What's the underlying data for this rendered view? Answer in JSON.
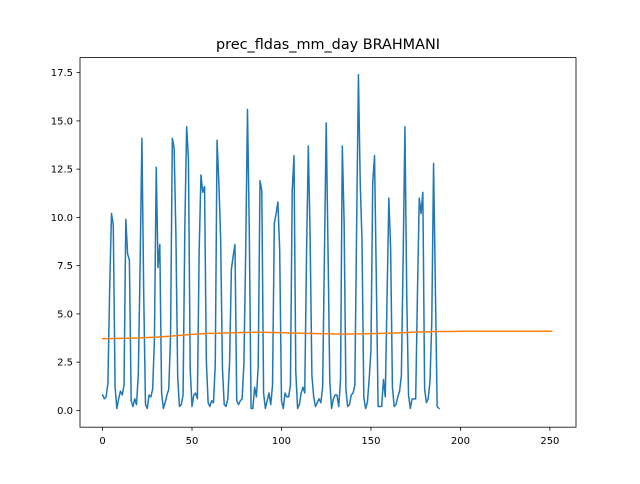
{
  "chart_data": {
    "type": "line",
    "title": "prec_fldas_mm_day BRAHMANI",
    "xlabel": "",
    "ylabel": "",
    "xlim": [
      -12.6,
      264.6
    ],
    "ylim": [
      -0.87,
      18.28
    ],
    "xticks": [
      0,
      50,
      100,
      150,
      200,
      250
    ],
    "yticks": [
      0.0,
      2.5,
      5.0,
      7.5,
      10.0,
      12.5,
      15.0,
      17.5
    ],
    "xtick_labels": [
      "0",
      "50",
      "100",
      "150",
      "200",
      "250"
    ],
    "ytick_labels": [
      "0.0",
      "2.5",
      "5.0",
      "7.5",
      "10.0",
      "12.5",
      "15.0",
      "17.5"
    ],
    "grid": false,
    "legend": "none",
    "series": [
      {
        "color": "#1f77b4",
        "values": [
          0.8,
          0.6,
          0.7,
          1.4,
          6.4,
          10.2,
          9.6,
          1.2,
          0.1,
          0.6,
          1.0,
          0.8,
          1.3,
          9.9,
          8.1,
          7.8,
          0.5,
          0.2,
          0.6,
          0.3,
          1.9,
          7.6,
          14.1,
          6.1,
          0.3,
          0.1,
          0.8,
          0.7,
          1.1,
          3.7,
          12.6,
          7.4,
          8.6,
          0.9,
          0.1,
          0.4,
          0.8,
          1.1,
          3.8,
          14.1,
          13.6,
          9.1,
          1.7,
          0.2,
          0.3,
          0.8,
          9.5,
          14.7,
          13.0,
          2.1,
          0.2,
          0.8,
          0.9,
          0.6,
          8.3,
          12.2,
          11.3,
          11.6,
          2.6,
          0.4,
          0.2,
          0.5,
          0.4,
          2.4,
          14.0,
          11.8,
          8.9,
          2.2,
          0.3,
          0.2,
          0.6,
          2.5,
          7.3,
          8.0,
          8.6,
          0.5,
          0.3,
          0.5,
          0.6,
          2.4,
          8.2,
          15.6,
          9.4,
          0.1,
          0.1,
          1.2,
          0.7,
          2.3,
          11.9,
          11.4,
          0.9,
          0.1,
          0.5,
          0.9,
          0.3,
          1.3,
          9.7,
          10.2,
          10.8,
          8.3,
          0.5,
          0.1,
          0.9,
          0.7,
          0.7,
          1.3,
          11.4,
          13.2,
          2.0,
          0.1,
          0.3,
          0.9,
          1.2,
          0.9,
          8.1,
          13.7,
          9.0,
          1.8,
          0.7,
          0.2,
          0.4,
          0.6,
          0.4,
          1.2,
          8.0,
          14.9,
          8.4,
          1.5,
          0.1,
          0.6,
          0.8,
          0.8,
          0.2,
          1.6,
          13.7,
          9.8,
          1.1,
          0.2,
          0.3,
          0.8,
          0.9,
          1.3,
          9.5,
          17.4,
          11.8,
          8.8,
          0.7,
          0.1,
          0.4,
          1.6,
          3.1,
          11.8,
          13.2,
          6.8,
          0.2,
          0.2,
          0.2,
          1.6,
          0.7,
          5.8,
          11.0,
          8.4,
          1.2,
          0.2,
          0.3,
          0.7,
          1.0,
          1.8,
          7.9,
          14.7,
          6.0,
          0.8,
          0.1,
          0.6,
          0.6,
          0.6,
          6.1,
          11.0,
          10.2,
          11.3,
          1.1,
          0.4,
          0.6,
          1.5,
          4.6,
          12.8,
          6.4,
          0.2,
          0.1
        ],
        "x_step": 1
      },
      {
        "color": "#ff7f0e",
        "values": [
          3.72,
          3.72,
          3.73,
          3.74,
          3.75,
          3.78,
          3.8,
          3.83,
          3.86,
          3.9,
          3.94,
          3.97,
          3.99,
          4.0,
          4.02,
          4.03,
          4.04,
          4.05,
          4.05,
          4.04,
          4.03,
          4.01,
          4.0,
          3.99,
          3.98,
          3.97,
          3.96,
          3.96,
          3.96,
          3.97,
          3.98,
          3.99,
          4.0,
          4.02,
          4.04,
          4.06,
          4.07,
          4.08,
          4.09,
          4.09,
          4.1,
          4.1,
          4.1,
          4.1,
          4.1,
          4.1,
          4.1
        ],
        "x_points": [
          0,
          5,
          10,
          15,
          20,
          25,
          30,
          35,
          40,
          45,
          50,
          55,
          60,
          65,
          70,
          75,
          80,
          85,
          90,
          95,
          100,
          105,
          110,
          115,
          120,
          125,
          130,
          135,
          140,
          145,
          150,
          155,
          160,
          165,
          170,
          175,
          180,
          185,
          190,
          195,
          200,
          205,
          210,
          215,
          220,
          225,
          251
        ]
      }
    ]
  }
}
